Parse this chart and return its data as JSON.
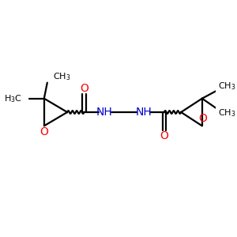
{
  "bg_color": "#ffffff",
  "bond_color": "#000000",
  "oxygen_color": "#ff0000",
  "nitrogen_color": "#0000cd",
  "font_size_label": 10,
  "font_size_small": 8,
  "figsize": [
    3.0,
    3.0
  ],
  "dpi": 100,
  "xlim": [
    0,
    10
  ],
  "ylim": [
    0,
    10
  ]
}
